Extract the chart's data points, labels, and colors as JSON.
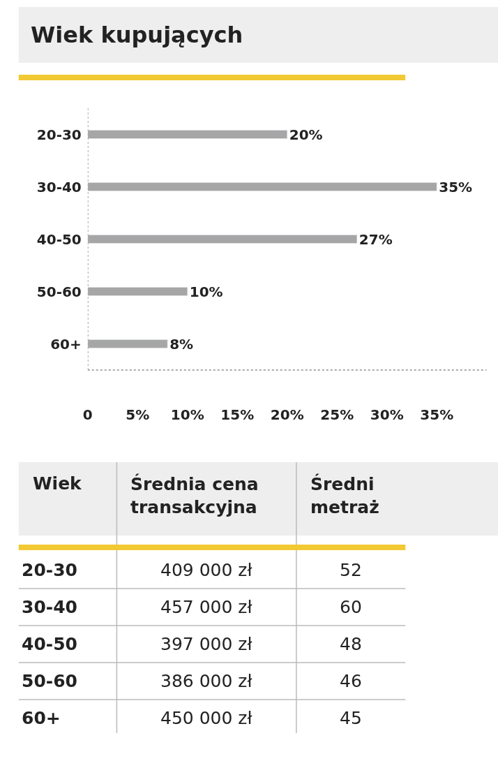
{
  "chart_data": [
    {
      "type": "bar",
      "title": "Wiek kupujących",
      "orientation": "horizontal",
      "categories": [
        "20-30",
        "30-40",
        "40-50",
        "50-60",
        "60+"
      ],
      "values": [
        20,
        35,
        27,
        10,
        8
      ],
      "value_labels": [
        "20%",
        "35%",
        "27%",
        "10%",
        "8%"
      ],
      "color": "#a6a6a6",
      "xlim": [
        0,
        40
      ],
      "xticks": [
        {
          "value": 0,
          "label": "0"
        },
        {
          "value": 5,
          "label": "5%"
        },
        {
          "value": 10,
          "label": "10%"
        },
        {
          "value": 15,
          "label": "15%"
        },
        {
          "value": 20,
          "label": "20%"
        },
        {
          "value": 25,
          "label": "25%"
        },
        {
          "value": 30,
          "label": "30%"
        },
        {
          "value": 35,
          "label": "35%"
        }
      ]
    },
    {
      "type": "other",
      "xlabel": "Wiek",
      "data_labels": true,
      "categories": [
        "20-30",
        "30-40",
        "40-50",
        "50-60",
        "60+"
      ],
      "series": [
        {
          "name": "Średnia cena transakcyjna",
          "values": [
            409000,
            457000,
            397000,
            386000,
            450000
          ],
          "value_labels": [
            "409 000 zł",
            "457 000 zł",
            "397 000 zł",
            "386 000 zł",
            "450 000 zł"
          ]
        },
        {
          "name": "Średni metraż",
          "values": [
            52,
            60,
            48,
            46,
            45
          ]
        }
      ]
    }
  ]
}
